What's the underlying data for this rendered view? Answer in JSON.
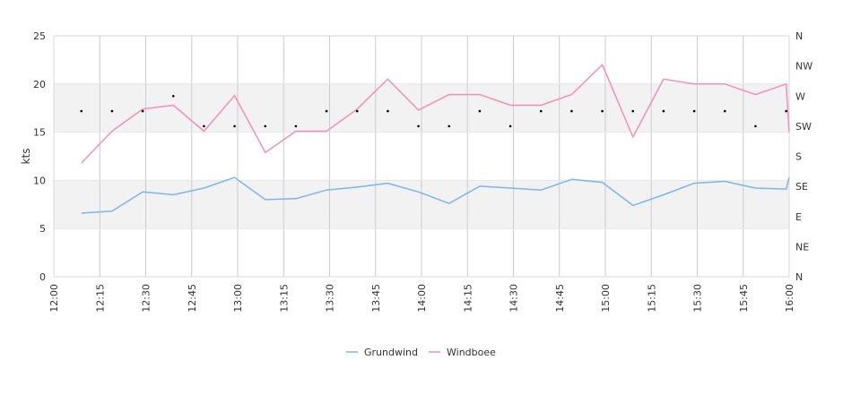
{
  "chart_data": {
    "type": "line",
    "title": "",
    "xlabel": "",
    "ylabel": "kts",
    "y2label": "",
    "ylim": [
      0,
      25
    ],
    "yticks": [
      0,
      5,
      10,
      15,
      20,
      25
    ],
    "x_range": [
      "12:00",
      "16:00"
    ],
    "x_ticks": [
      "12:00",
      "12:15",
      "12:30",
      "12:45",
      "13:00",
      "13:15",
      "13:30",
      "13:45",
      "14:00",
      "14:15",
      "14:30",
      "14:45",
      "15:00",
      "15:15",
      "15:30",
      "15:45",
      "16:00"
    ],
    "direction_axis": [
      "N",
      "NE",
      "E",
      "SE",
      "S",
      "SW",
      "W",
      "NW",
      "N"
    ],
    "bands": [
      [
        5,
        10
      ],
      [
        15,
        20
      ]
    ],
    "grid": "vertical",
    "legend_position": "bottom-center",
    "x": [
      "12:09",
      "12:19",
      "12:29",
      "12:39",
      "12:49",
      "12:59",
      "13:09",
      "13:19",
      "13:29",
      "13:39",
      "13:49",
      "13:59",
      "14:09",
      "14:19",
      "14:29",
      "14:39",
      "14:49",
      "14:59",
      "15:09",
      "15:19",
      "15:29",
      "15:39",
      "15:49",
      "15:59",
      "16:00"
    ],
    "series": [
      {
        "name": "Grundwind",
        "color": "#7cb5ec",
        "values": [
          6.6,
          6.8,
          8.8,
          8.5,
          9.2,
          10.3,
          8.0,
          8.1,
          9.0,
          9.3,
          9.7,
          8.8,
          7.6,
          9.4,
          9.2,
          9.0,
          10.1,
          9.8,
          7.4,
          8.5,
          9.7,
          9.9,
          9.2,
          9.1,
          10.3
        ]
      },
      {
        "name": "Windboee",
        "color": "#f28fb8",
        "values": [
          11.8,
          15.1,
          17.4,
          17.8,
          15.1,
          18.8,
          12.9,
          15.1,
          15.1,
          17.4,
          20.5,
          17.3,
          18.9,
          18.9,
          17.8,
          17.8,
          18.9,
          22.0,
          14.5,
          20.5,
          20.0,
          20.0,
          18.9,
          20.0,
          15.0
        ]
      }
    ],
    "direction_marks": {
      "x": [
        "12:09",
        "12:19",
        "12:29",
        "12:39",
        "12:49",
        "12:59",
        "13:09",
        "13:19",
        "13:29",
        "13:39",
        "13:49",
        "13:59",
        "14:09",
        "14:19",
        "14:29",
        "14:39",
        "14:49",
        "14:59",
        "15:09",
        "15:19",
        "15:29",
        "15:39",
        "15:49",
        "15:59"
      ],
      "values": [
        "WSW",
        "WSW",
        "WSW",
        "W",
        "SW",
        "SW",
        "SW",
        "SW",
        "WSW",
        "WSW",
        "WSW",
        "SW",
        "SW",
        "WSW",
        "SW",
        "WSW",
        "WSW",
        "WSW",
        "WSW",
        "WSW",
        "WSW",
        "WSW",
        "SW",
        "WSW"
      ]
    }
  }
}
